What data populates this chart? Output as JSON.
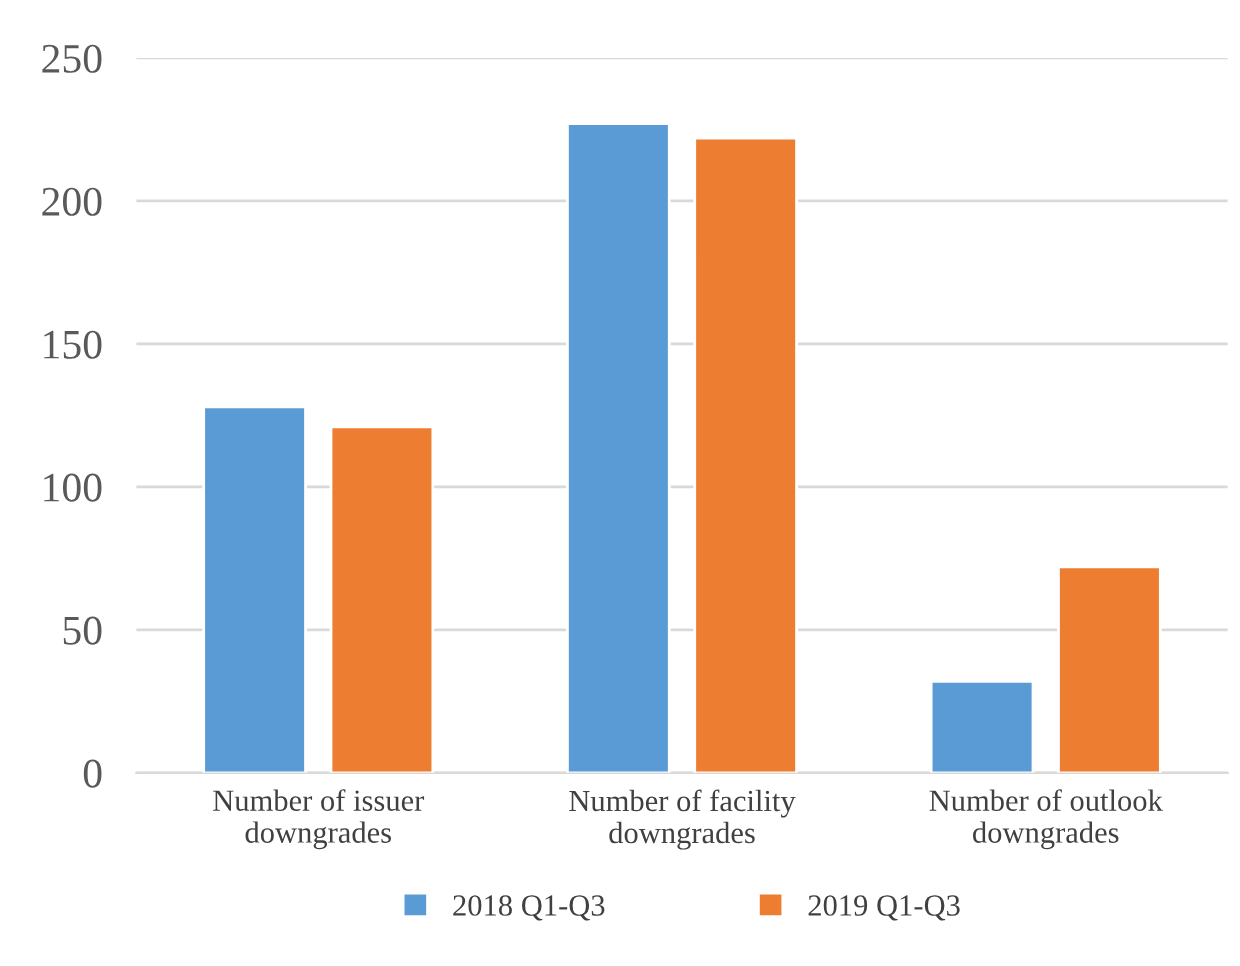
{
  "chart_data": {
    "type": "bar",
    "categories": [
      "Number of issuer\ndowngrades",
      "Number of facility\ndowngrades",
      "Number of outlook\ndowngrades"
    ],
    "series": [
      {
        "name": "2018 Q1-Q3",
        "color": "#5b9bd5",
        "values": [
          128,
          227,
          32
        ]
      },
      {
        "name": "2019 Q1-Q3",
        "color": "#ed7d31",
        "values": [
          121,
          222,
          72
        ]
      }
    ],
    "ylim": [
      0,
      250
    ],
    "yticks": [
      0,
      50,
      100,
      150,
      200,
      250
    ],
    "grid": "y",
    "legend": "bottom"
  }
}
